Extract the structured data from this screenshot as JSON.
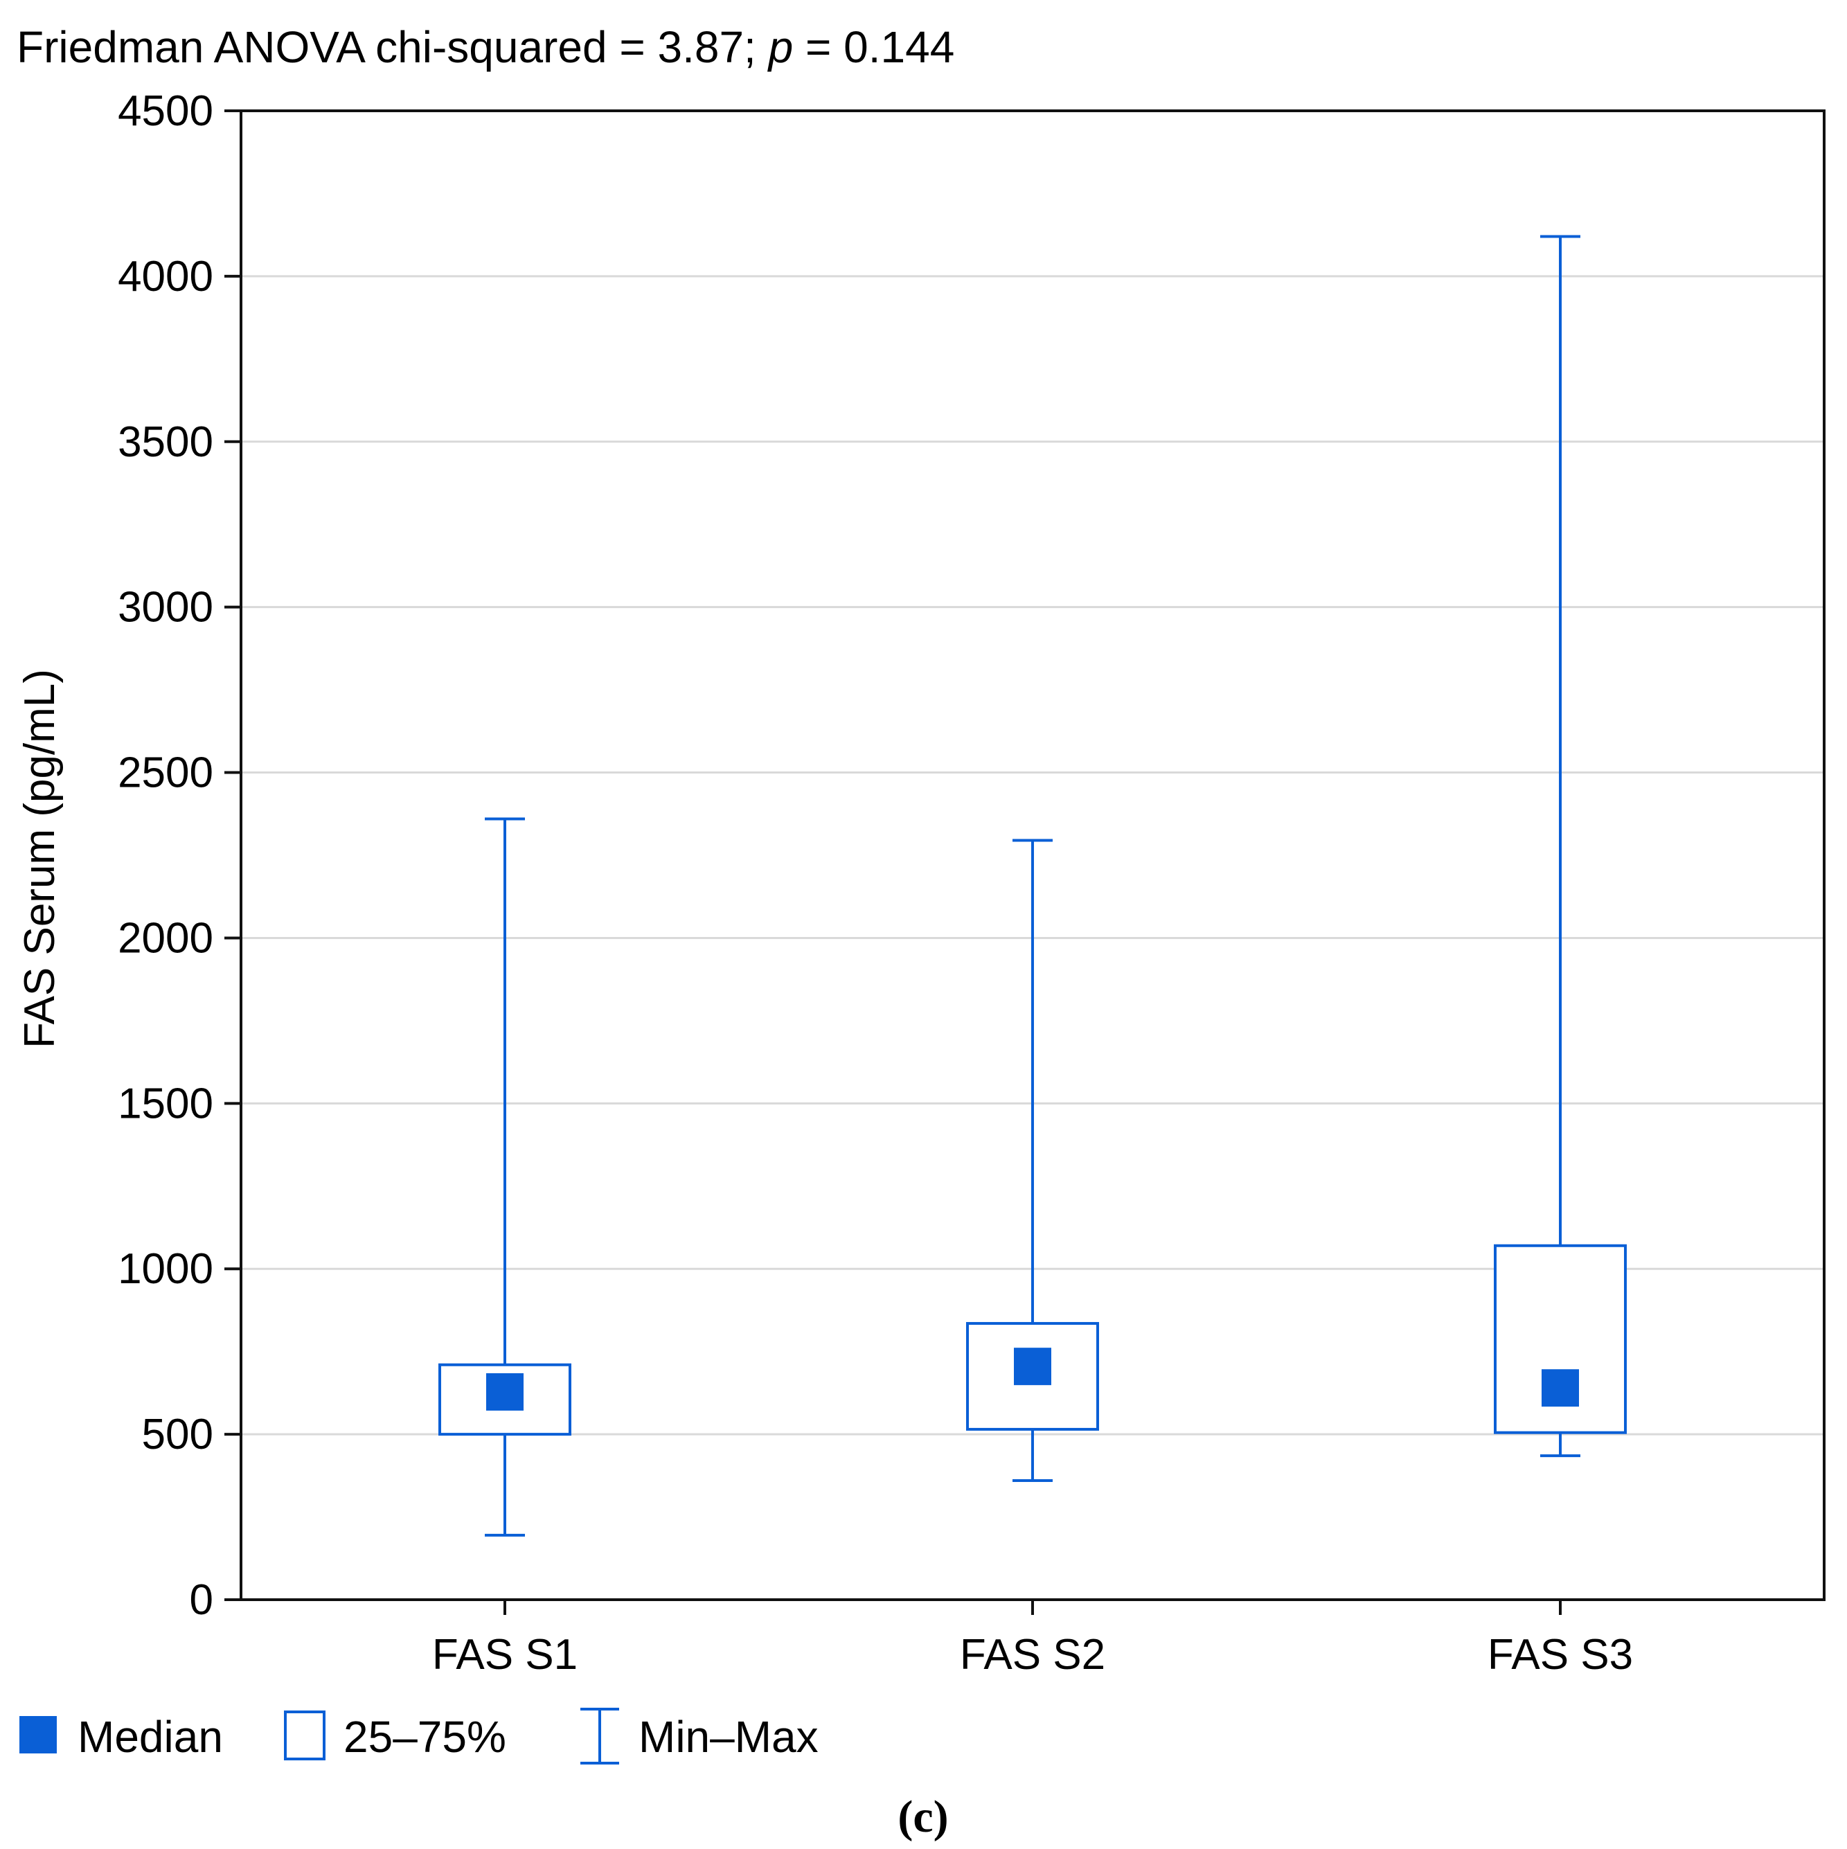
{
  "chart_data": {
    "type": "box",
    "title": "Friedman ANOVA chi-squared = 3.87; ",
    "title_p": "p",
    "title_value": " = 0.144",
    "ylabel": "FAS Serum (pg/mL)",
    "xlabel": "",
    "ylim": [
      0,
      4500
    ],
    "yticks": [
      0,
      500,
      1000,
      1500,
      2000,
      2500,
      3000,
      3500,
      4000,
      4500
    ],
    "grid": true,
    "categories": [
      "FAS S1",
      "FAS S2",
      "FAS S3"
    ],
    "series": [
      {
        "category": "FAS S1",
        "min": 195,
        "q1": 500,
        "median": 628,
        "q3": 710,
        "max": 2360
      },
      {
        "category": "FAS S2",
        "min": 360,
        "q1": 515,
        "median": 705,
        "q3": 835,
        "max": 2295
      },
      {
        "category": "FAS S3",
        "min": 435,
        "q1": 505,
        "median": 640,
        "q3": 1070,
        "max": 4120
      }
    ],
    "legend": {
      "placement": "bottom-left",
      "items": [
        {
          "symbol": "filled-square",
          "label": "Median"
        },
        {
          "symbol": "open-square",
          "label": "25–75%"
        },
        {
          "symbol": "whisker",
          "label": "Min–Max"
        }
      ]
    },
    "caption": "(c)",
    "colors": {
      "box": "#0a5fd6",
      "grid": "#d9d9d9",
      "axis": "#111111"
    }
  }
}
